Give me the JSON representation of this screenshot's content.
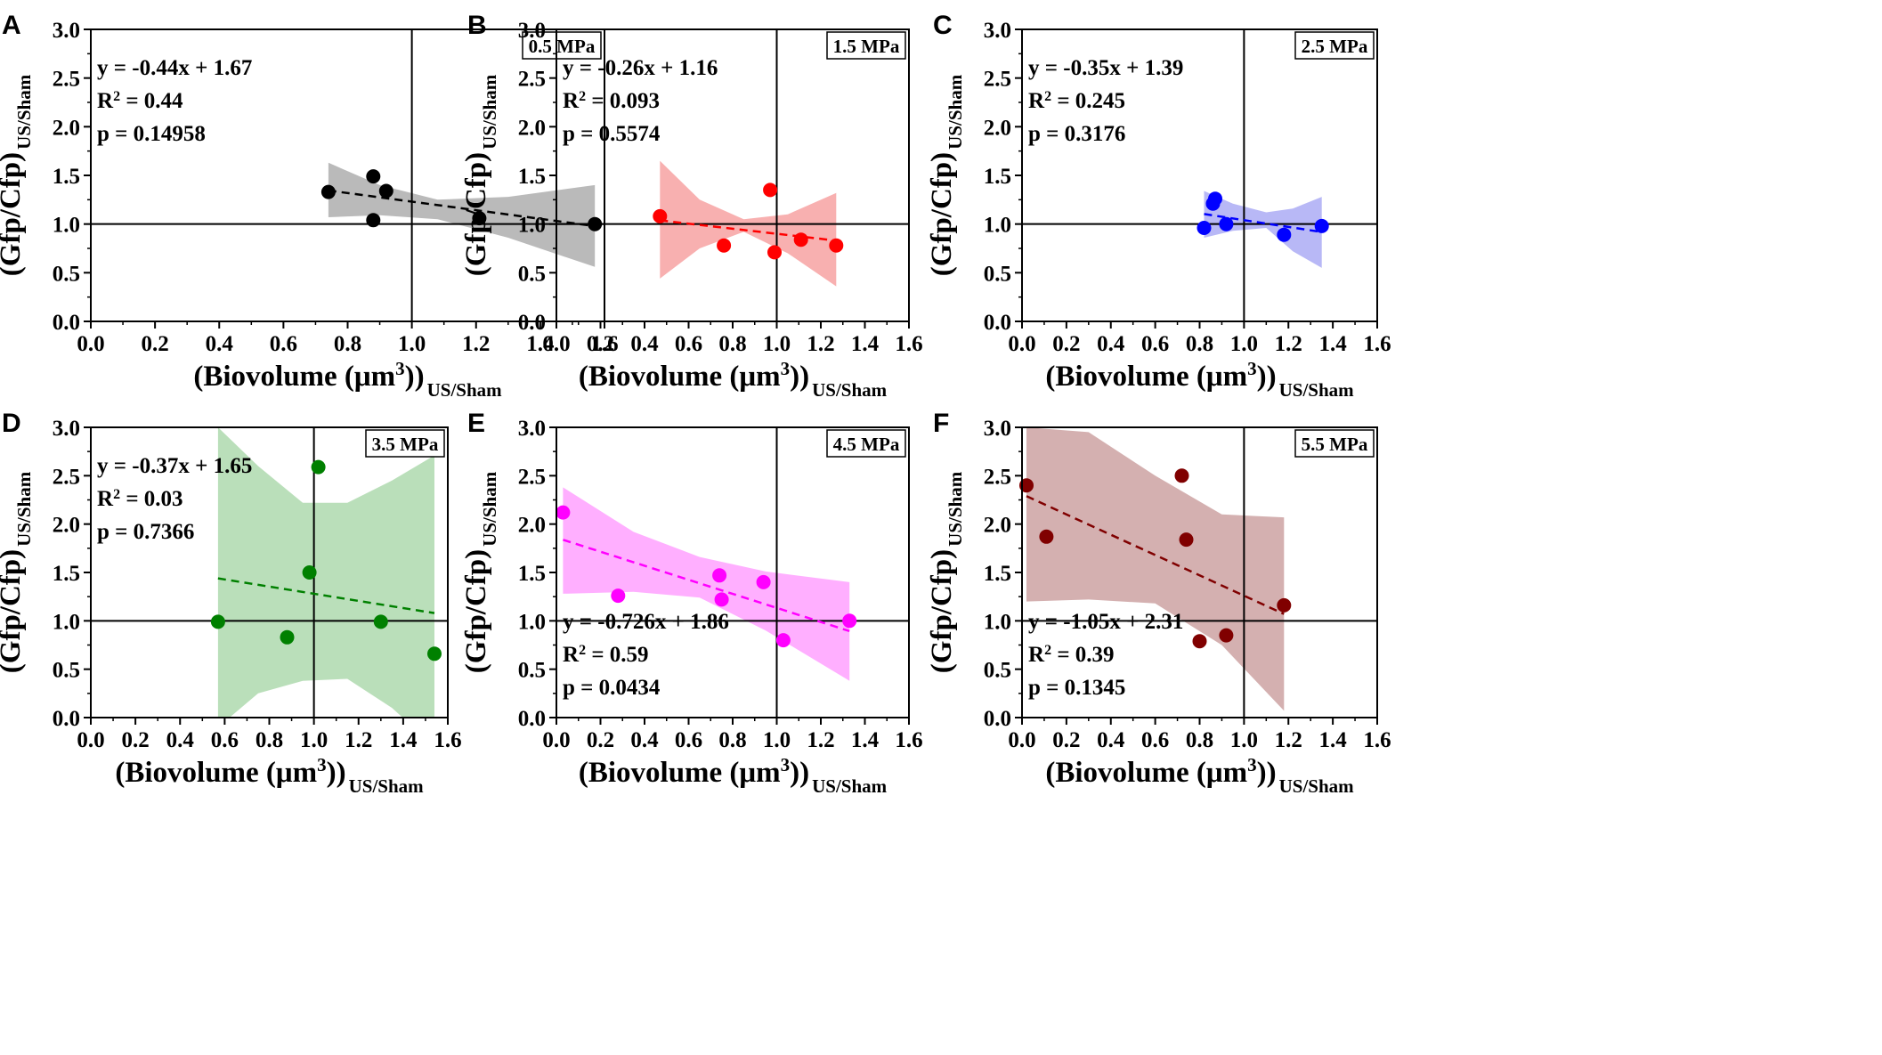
{
  "figure": {
    "y_axis_label": "(Gfp/Cfp)",
    "y_axis_subscript": "US/Sham",
    "x_axis_label_before_sup": "(Biovolume (μm",
    "x_axis_label_sup": "3",
    "x_axis_label_after_sup": "))",
    "x_axis_subscript": "US/Sham"
  },
  "chart_data": [
    {
      "type": "scatter",
      "panel": "A",
      "pressure": "0.5 MPa",
      "color": "#000000",
      "band_color": "#8c8c8c",
      "band_opacity": 0.6,
      "xlim": [
        0.0,
        1.6
      ],
      "ylim": [
        0.0,
        3.0
      ],
      "xticks": [
        "0.0",
        "0.2",
        "0.4",
        "0.6",
        "0.8",
        "1.0",
        "1.2",
        "1.4",
        "1.6"
      ],
      "yticks": [
        "0.0",
        "0.5",
        "1.0",
        "1.5",
        "2.0",
        "2.5",
        "3.0"
      ],
      "reference_lines": {
        "x": 1.0,
        "y": 1.0
      },
      "points": [
        [
          0.74,
          1.33
        ],
        [
          0.88,
          1.49
        ],
        [
          0.88,
          1.04
        ],
        [
          0.92,
          1.34
        ],
        [
          1.21,
          1.06
        ],
        [
          1.57,
          1.0
        ]
      ],
      "fit": {
        "x": [
          0.74,
          1.57
        ],
        "y": [
          1.345,
          0.979
        ]
      },
      "band": {
        "x": [
          0.74,
          0.9,
          1.08,
          1.3,
          1.57
        ],
        "upper": [
          1.63,
          1.4,
          1.25,
          1.28,
          1.4
        ],
        "lower": [
          1.07,
          1.09,
          1.05,
          0.86,
          0.56
        ]
      },
      "equation": "y = -0.44x + 1.67",
      "r2_label": "R",
      "r2_value": " = 0.44",
      "p_value": "p = 0.14958",
      "annotation_position": "top-left"
    },
    {
      "type": "scatter",
      "panel": "B",
      "pressure": "1.5 MPa",
      "color": "#ff0000",
      "band_color": "#f47c7c",
      "band_opacity": 0.6,
      "xlim": [
        0.0,
        1.6
      ],
      "ylim": [
        0.0,
        3.0
      ],
      "xticks": [
        "0.0",
        "0.2",
        "0.4",
        "0.6",
        "0.8",
        "1.0",
        "1.2",
        "1.4",
        "1.6"
      ],
      "yticks": [
        "0.0",
        "0.5",
        "1.0",
        "1.5",
        "2.0",
        "2.5",
        "3.0"
      ],
      "reference_lines": {
        "x": 1.0,
        "y": 1.0
      },
      "points": [
        [
          0.47,
          1.08
        ],
        [
          0.76,
          0.78
        ],
        [
          0.97,
          1.35
        ],
        [
          0.99,
          0.71
        ],
        [
          1.11,
          0.84
        ],
        [
          1.27,
          0.78
        ]
      ],
      "fit": {
        "x": [
          0.47,
          1.27
        ],
        "y": [
          1.038,
          0.83
        ]
      },
      "band": {
        "x": [
          0.47,
          0.65,
          0.85,
          1.05,
          1.27
        ],
        "upper": [
          1.65,
          1.25,
          1.05,
          1.1,
          1.32
        ],
        "lower": [
          0.44,
          0.75,
          0.92,
          0.7,
          0.36
        ]
      },
      "equation": "y = -0.26x + 1.16",
      "r2_label": "R",
      "r2_value": " = 0.093",
      "p_value": "p = 0.5574",
      "annotation_position": "top-left"
    },
    {
      "type": "scatter",
      "panel": "C",
      "pressure": "2.5 MPa",
      "color": "#0000ff",
      "band_color": "#8888f0",
      "band_opacity": 0.6,
      "xlim": [
        0.0,
        1.6
      ],
      "ylim": [
        0.0,
        3.0
      ],
      "xticks": [
        "0.0",
        "0.2",
        "0.4",
        "0.6",
        "0.8",
        "1.0",
        "1.2",
        "1.4",
        "1.6"
      ],
      "yticks": [
        "0.0",
        "0.5",
        "1.0",
        "1.5",
        "2.0",
        "2.5",
        "3.0"
      ],
      "reference_lines": {
        "x": 1.0,
        "y": 1.0
      },
      "points": [
        [
          0.82,
          0.96
        ],
        [
          0.86,
          1.21
        ],
        [
          0.87,
          1.26
        ],
        [
          0.92,
          1.0
        ],
        [
          1.18,
          0.89
        ],
        [
          1.35,
          0.98
        ]
      ],
      "fit": {
        "x": [
          0.82,
          1.35
        ],
        "y": [
          1.103,
          0.918
        ]
      },
      "band": {
        "x": [
          0.82,
          0.95,
          1.1,
          1.22,
          1.35
        ],
        "upper": [
          1.34,
          1.21,
          1.12,
          1.16,
          1.28
        ],
        "lower": [
          0.86,
          0.93,
          0.96,
          0.72,
          0.55
        ]
      },
      "equation": "y = -0.35x + 1.39",
      "r2_label": "R",
      "r2_value": " = 0.245",
      "p_value": "p = 0.3176",
      "annotation_position": "top-left"
    },
    {
      "type": "scatter",
      "panel": "D",
      "pressure": "3.5 MPa",
      "color": "#008000",
      "band_color": "#8cc98c",
      "band_opacity": 0.6,
      "xlim": [
        0.0,
        1.6
      ],
      "ylim": [
        0.0,
        3.0
      ],
      "xticks": [
        "0.0",
        "0.2",
        "0.4",
        "0.6",
        "0.8",
        "1.0",
        "1.2",
        "1.4",
        "1.6"
      ],
      "yticks": [
        "0.0",
        "0.5",
        "1.0",
        "1.5",
        "2.0",
        "2.5",
        "3.0"
      ],
      "reference_lines": {
        "x": 1.0,
        "y": 1.0
      },
      "points": [
        [
          0.57,
          0.99
        ],
        [
          0.88,
          0.83
        ],
        [
          0.98,
          1.5
        ],
        [
          1.02,
          2.59
        ],
        [
          1.3,
          0.99
        ],
        [
          1.54,
          0.66
        ]
      ],
      "fit": {
        "x": [
          0.57,
          1.54
        ],
        "y": [
          1.439,
          1.08
        ]
      },
      "band": {
        "x": [
          0.57,
          0.75,
          0.95,
          1.15,
          1.35,
          1.54
        ],
        "upper": [
          3.0,
          2.6,
          2.22,
          2.22,
          2.45,
          2.71
        ],
        "lower": [
          -0.1,
          0.25,
          0.38,
          0.4,
          0.1,
          -0.3
        ]
      },
      "equation": "y = -0.37x + 1.65",
      "r2_label": "R",
      "r2_value": " = 0.03",
      "p_value": "p = 0.7366",
      "annotation_position": "top-left"
    },
    {
      "type": "scatter",
      "panel": "E",
      "pressure": "4.5 MPa",
      "color": "#ff00ff",
      "band_color": "#ff7aff",
      "band_opacity": 0.6,
      "xlim": [
        0.0,
        1.6
      ],
      "ylim": [
        0.0,
        3.0
      ],
      "xticks": [
        "0.0",
        "0.2",
        "0.4",
        "0.6",
        "0.8",
        "1.0",
        "1.2",
        "1.4",
        "1.6"
      ],
      "yticks": [
        "0.0",
        "0.5",
        "1.0",
        "1.5",
        "2.0",
        "2.5",
        "3.0"
      ],
      "reference_lines": {
        "x": 1.0,
        "y": 1.0
      },
      "points": [
        [
          0.03,
          2.12
        ],
        [
          0.28,
          1.26
        ],
        [
          0.74,
          1.47
        ],
        [
          0.75,
          1.22
        ],
        [
          0.94,
          1.4
        ],
        [
          1.03,
          0.8
        ],
        [
          1.33,
          1.0
        ]
      ],
      "fit": {
        "x": [
          0.03,
          1.33
        ],
        "y": [
          1.838,
          0.894
        ]
      },
      "band": {
        "x": [
          0.03,
          0.35,
          0.65,
          0.95,
          1.33
        ],
        "upper": [
          2.38,
          1.92,
          1.66,
          1.51,
          1.4
        ],
        "lower": [
          1.28,
          1.3,
          1.24,
          0.9,
          0.38
        ]
      },
      "equation": "y = -0.726x + 1.86",
      "r2_label": "R",
      "r2_value": " = 0.59",
      "p_value": "p = 0.0434",
      "annotation_position": "bottom-left"
    },
    {
      "type": "scatter",
      "panel": "F",
      "pressure": "5.5 MPa",
      "color": "#800000",
      "band_color": "#b07070",
      "band_opacity": 0.55,
      "xlim": [
        0.0,
        1.6
      ],
      "ylim": [
        0.0,
        3.0
      ],
      "xticks": [
        "0.0",
        "0.2",
        "0.4",
        "0.6",
        "0.8",
        "1.0",
        "1.2",
        "1.4",
        "1.6"
      ],
      "yticks": [
        "0.0",
        "0.5",
        "1.0",
        "1.5",
        "2.0",
        "2.5",
        "3.0"
      ],
      "reference_lines": {
        "x": 1.0,
        "y": 1.0
      },
      "points": [
        [
          0.02,
          2.4
        ],
        [
          0.11,
          1.87
        ],
        [
          0.72,
          2.5
        ],
        [
          0.74,
          1.84
        ],
        [
          0.8,
          0.79
        ],
        [
          0.92,
          0.85
        ],
        [
          1.18,
          1.16
        ]
      ],
      "fit": {
        "x": [
          0.02,
          1.18
        ],
        "y": [
          2.289,
          1.071
        ]
      },
      "band": {
        "x": [
          0.02,
          0.3,
          0.6,
          0.9,
          1.18
        ],
        "upper": [
          3.0,
          2.95,
          2.5,
          2.1,
          2.07
        ],
        "lower": [
          1.2,
          1.22,
          1.18,
          0.75,
          0.07
        ]
      },
      "equation": "y = -1.05x + 2.31",
      "r2_label": "R",
      "r2_value": " = 0.39",
      "p_value": "p = 0.1345",
      "annotation_position": "bottom-left"
    }
  ]
}
